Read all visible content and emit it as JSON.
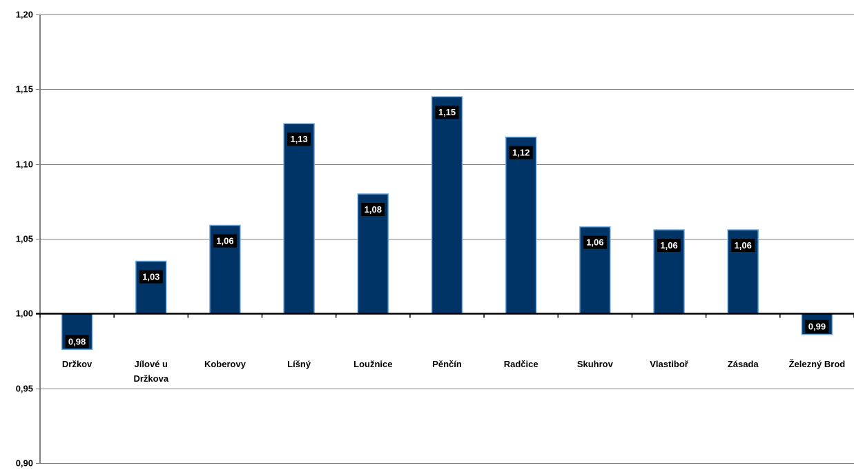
{
  "chart_data": {
    "type": "bar",
    "categories": [
      [
        "Držkov"
      ],
      [
        "Jílové u",
        "Držkova"
      ],
      [
        "Koberovy"
      ],
      [
        "Líšný"
      ],
      [
        "Loužnice"
      ],
      [
        "Pěnčín"
      ],
      [
        "Radčice"
      ],
      [
        "Skuhrov"
      ],
      [
        "Vlastiboř"
      ],
      [
        "Zásada"
      ],
      [
        "Železný Brod"
      ]
    ],
    "values": [
      0.976,
      1.035,
      1.059,
      1.127,
      1.08,
      1.145,
      1.118,
      1.058,
      1.056,
      1.056,
      0.986
    ],
    "data_labels": [
      "0,98",
      "1,03",
      "1,06",
      "1,13",
      "1,08",
      "1,15",
      "1,12",
      "1,06",
      "1,06",
      "1,06",
      "0,99"
    ],
    "y_ticks": [
      {
        "value": 0.9,
        "label": "0,90"
      },
      {
        "value": 0.95,
        "label": "0,95"
      },
      {
        "value": 1.0,
        "label": "1,00"
      },
      {
        "value": 1.05,
        "label": "1,05"
      },
      {
        "value": 1.1,
        "label": "1,10"
      },
      {
        "value": 1.15,
        "label": "1,15"
      },
      {
        "value": 1.2,
        "label": "1,20"
      }
    ],
    "ylim": [
      0.9,
      1.2
    ],
    "baseline": 1.0,
    "grid": true,
    "title": "",
    "xlabel": "",
    "ylabel": "",
    "colors": {
      "bar_fill": "#003366",
      "bar_stroke": "#6fa8dc",
      "grid": "#808080",
      "axis": "#000000",
      "label_bg": "#000000",
      "label_text": "#ffffff"
    }
  }
}
